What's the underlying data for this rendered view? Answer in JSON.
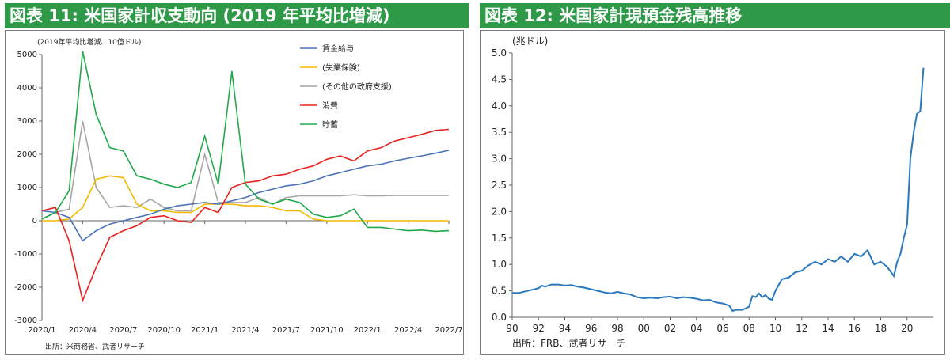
{
  "chart_data": [
    {
      "type": "line",
      "title": "図表 11: 米国家計収支動向 (2019 年平均比増減)",
      "unit_label": "(2019年平均比増減、10億ドル)",
      "source": "出所：米商務省、武者リサーチ",
      "ylim": [
        -3000,
        5000
      ],
      "yticks": [
        "5000",
        "4000",
        "3000",
        "2000",
        "1000",
        "0",
        "-1000",
        "-2000",
        "-3000"
      ],
      "ytick_values": [
        5000,
        4000,
        3000,
        2000,
        1000,
        0,
        -1000,
        -2000,
        -3000
      ],
      "xticks": [
        "2020/1",
        "2020/4",
        "2020/7",
        "2020/10",
        "2021/1",
        "2021/4",
        "2021/7",
        "2021/10",
        "2022/1",
        "2022/4",
        "2022/7"
      ],
      "n_points": 31,
      "grid": false,
      "legend_position": "top-right",
      "series": [
        {
          "name": "賃金給与",
          "color": "#4a72b8",
          "values": [
            300,
            250,
            100,
            -600,
            -300,
            -100,
            0,
            100,
            200,
            350,
            450,
            500,
            550,
            500,
            600,
            700,
            850,
            950,
            1050,
            1100,
            1200,
            1350,
            1450,
            1550,
            1650,
            1700,
            1800,
            1880,
            1950,
            2030,
            2120
          ]
        },
        {
          "name": "(失業保険)",
          "color": "#f5b800",
          "values": [
            0,
            0,
            50,
            400,
            1250,
            1350,
            1300,
            500,
            300,
            300,
            250,
            250,
            500,
            500,
            500,
            450,
            450,
            400,
            300,
            300,
            50,
            0,
            0,
            0,
            0,
            0,
            0,
            0,
            0,
            0,
            0
          ]
        },
        {
          "name": "(その他の政府支援)",
          "color": "#a6a6a6",
          "values": [
            50,
            250,
            350,
            3000,
            1000,
            400,
            450,
            400,
            650,
            400,
            300,
            300,
            2000,
            550,
            550,
            550,
            700,
            500,
            700,
            750,
            750,
            750,
            750,
            780,
            750,
            750,
            760,
            760,
            760,
            760,
            760
          ]
        },
        {
          "name": "消費",
          "color": "#e8231e",
          "values": [
            300,
            400,
            -600,
            -2400,
            -1400,
            -500,
            -300,
            -150,
            100,
            150,
            0,
            -50,
            400,
            250,
            1000,
            1150,
            1200,
            1350,
            1400,
            1550,
            1650,
            1850,
            1950,
            1800,
            2100,
            2200,
            2400,
            2500,
            2600,
            2720,
            2750
          ]
        },
        {
          "name": "貯蓄",
          "color": "#22a84a",
          "values": [
            50,
            250,
            900,
            5100,
            3200,
            2200,
            2100,
            1350,
            1250,
            1100,
            1000,
            1150,
            2550,
            1100,
            4500,
            1100,
            650,
            500,
            650,
            550,
            200,
            100,
            150,
            350,
            -200,
            -200,
            -250,
            -300,
            -280,
            -320,
            -300
          ]
        }
      ]
    },
    {
      "type": "line",
      "title": "図表 12: 米国家計現預金残高推移",
      "unit_label": "(兆ドル)",
      "source": "出所：FRB、武者リサーチ",
      "ylim": [
        0,
        5
      ],
      "yticks": [
        "5.0",
        "4.5",
        "4.0",
        "3.5",
        "3.0",
        "2.5",
        "2.0",
        "1.5",
        "1.0",
        "0.5",
        "0.0"
      ],
      "ytick_values": [
        5,
        4.5,
        4,
        3.5,
        3,
        2.5,
        2,
        1.5,
        1,
        0.5,
        0
      ],
      "xlim": [
        1990,
        2022
      ],
      "xticks": [
        "90",
        "92",
        "94",
        "96",
        "98",
        "00",
        "02",
        "04",
        "06",
        "08",
        "10",
        "12",
        "14",
        "16",
        "18",
        "20"
      ],
      "xtick_values": [
        1990,
        1992,
        1994,
        1996,
        1998,
        2000,
        2002,
        2004,
        2006,
        2008,
        2010,
        2012,
        2014,
        2016,
        2018,
        2020
      ],
      "grid": false,
      "series": [
        {
          "name": "",
          "color": "#2a78bd",
          "x": [
            1990,
            1990.5,
            1991,
            1991.5,
            1992,
            1992.25,
            1992.5,
            1992.75,
            1993,
            1993.5,
            1994,
            1994.5,
            1995,
            1995.5,
            1996,
            1996.5,
            1997,
            1997.5,
            1998,
            1998.5,
            1999,
            1999.5,
            2000,
            2000.5,
            2001,
            2001.5,
            2002,
            2002.5,
            2003,
            2003.5,
            2004,
            2004.5,
            2005,
            2005.5,
            2006,
            2006.5,
            2006.75,
            2007,
            2007.5,
            2008,
            2008.25,
            2008.5,
            2008.75,
            2009,
            2009.25,
            2009.5,
            2009.75,
            2010,
            2010.5,
            2011,
            2011.5,
            2012,
            2012.5,
            2013,
            2013.5,
            2014,
            2014.5,
            2015,
            2015.5,
            2016,
            2016.5,
            2017,
            2017.5,
            2018,
            2018.5,
            2019,
            2019.25,
            2019.5,
            2019.75,
            2020,
            2020.25,
            2020.5,
            2020.75,
            2021,
            2021.25
          ],
          "y": [
            0.46,
            0.46,
            0.49,
            0.52,
            0.55,
            0.6,
            0.58,
            0.6,
            0.62,
            0.62,
            0.6,
            0.61,
            0.58,
            0.56,
            0.53,
            0.5,
            0.47,
            0.45,
            0.48,
            0.45,
            0.43,
            0.38,
            0.36,
            0.37,
            0.36,
            0.38,
            0.39,
            0.36,
            0.38,
            0.37,
            0.35,
            0.32,
            0.33,
            0.28,
            0.26,
            0.22,
            0.12,
            0.14,
            0.14,
            0.2,
            0.4,
            0.38,
            0.45,
            0.38,
            0.42,
            0.35,
            0.33,
            0.5,
            0.72,
            0.75,
            0.85,
            0.88,
            0.98,
            1.05,
            1.0,
            1.1,
            1.05,
            1.15,
            1.05,
            1.2,
            1.15,
            1.27,
            1.0,
            1.05,
            0.95,
            0.78,
            1.05,
            1.2,
            1.5,
            1.75,
            3.0,
            3.5,
            3.85,
            3.9,
            4.72
          ]
        }
      ]
    }
  ]
}
